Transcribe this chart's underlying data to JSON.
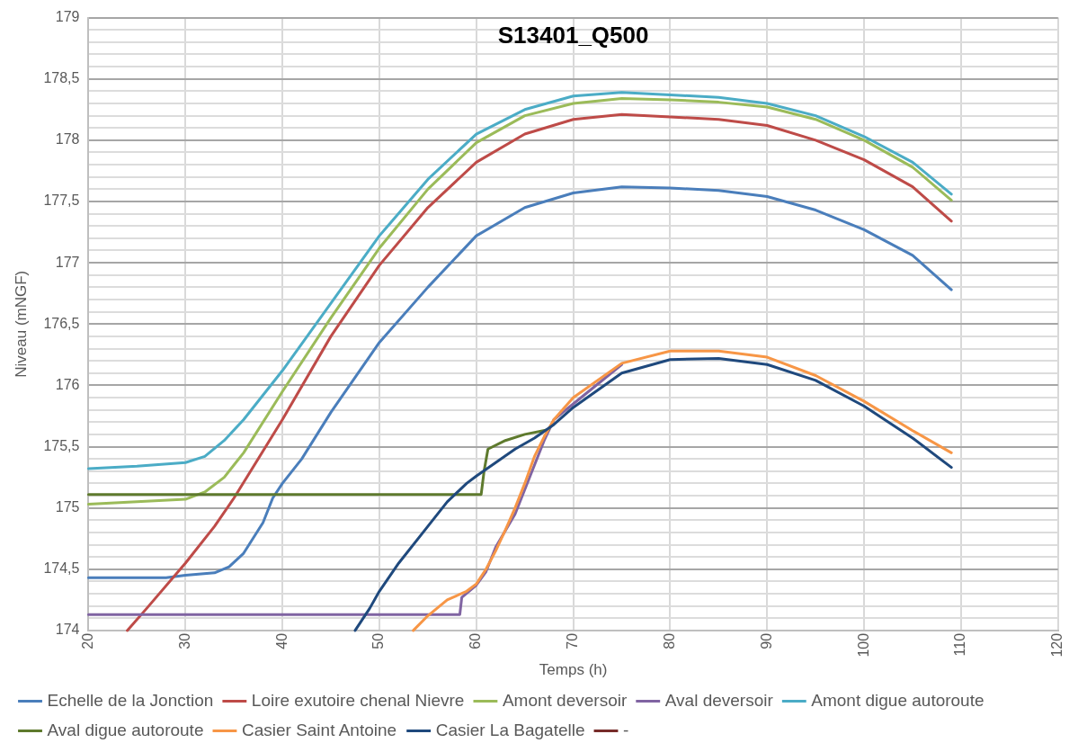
{
  "chart_data": {
    "type": "line",
    "title": "S13401_Q500",
    "xlabel": "Temps (h)",
    "ylabel": "Niveau (mNGF)",
    "xlim": [
      20,
      120
    ],
    "xticks": [
      20,
      30,
      40,
      50,
      60,
      70,
      80,
      90,
      100,
      110,
      120
    ],
    "ylim": [
      174,
      179
    ],
    "yticks": [
      174,
      {
        "value": 174.1,
        "label": null
      },
      {
        "value": 174.2,
        "label": null
      },
      {
        "value": 174.3,
        "label": null
      },
      {
        "value": 174.4,
        "label": null
      },
      {
        "value": 174.5,
        "label": "174,5"
      },
      {
        "value": 174.6,
        "label": null
      },
      {
        "value": 174.7,
        "label": null
      },
      {
        "value": 174.8,
        "label": null
      },
      {
        "value": 174.9,
        "label": null
      },
      175,
      {
        "value": 175.1,
        "label": null
      },
      {
        "value": 175.2,
        "label": null
      },
      {
        "value": 175.3,
        "label": null
      },
      {
        "value": 175.4,
        "label": null
      },
      {
        "value": 175.5,
        "label": "175,5"
      },
      {
        "value": 175.6,
        "label": null
      },
      {
        "value": 175.7,
        "label": null
      },
      {
        "value": 175.8,
        "label": null
      },
      {
        "value": 175.9,
        "label": null
      },
      176,
      {
        "value": 176.1,
        "label": null
      },
      {
        "value": 176.2,
        "label": null
      },
      {
        "value": 176.3,
        "label": null
      },
      {
        "value": 176.4,
        "label": null
      },
      {
        "value": 176.5,
        "label": "176,5"
      },
      {
        "value": 176.6,
        "label": null
      },
      {
        "value": 176.7,
        "label": null
      },
      {
        "value": 176.8,
        "label": null
      },
      {
        "value": 176.9,
        "label": null
      },
      177,
      {
        "value": 177.1,
        "label": null
      },
      {
        "value": 177.2,
        "label": null
      },
      {
        "value": 177.3,
        "label": null
      },
      {
        "value": 177.4,
        "label": null
      },
      {
        "value": 177.5,
        "label": "177,5"
      },
      {
        "value": 177.6,
        "label": null
      },
      {
        "value": 177.7,
        "label": null
      },
      {
        "value": 177.8,
        "label": null
      },
      {
        "value": 177.9,
        "label": null
      },
      178,
      {
        "value": 178.1,
        "label": null
      },
      {
        "value": 178.2,
        "label": null
      },
      {
        "value": 178.3,
        "label": null
      },
      {
        "value": 178.4,
        "label": null
      },
      {
        "value": 178.5,
        "label": "178,5"
      },
      {
        "value": 178.6,
        "label": null
      },
      {
        "value": 178.7,
        "label": null
      },
      {
        "value": 178.8,
        "label": null
      },
      {
        "value": 178.9,
        "label": null
      },
      179
    ],
    "grid": true,
    "legend": "bottom",
    "marker": "none",
    "line_style": "solid",
    "series": [
      {
        "name": "Echelle de la Jonction",
        "color": "#4a7ebb",
        "x": [
          20,
          28,
          30,
          33,
          34.5,
          36,
          38,
          39,
          40,
          42,
          45,
          50,
          55,
          60,
          65,
          70,
          75,
          80,
          85,
          90,
          95,
          100,
          105,
          109
        ],
        "values": [
          174.43,
          174.43,
          174.45,
          174.47,
          174.52,
          174.63,
          174.88,
          175.08,
          175.2,
          175.4,
          175.78,
          176.35,
          176.8,
          177.22,
          177.45,
          177.57,
          177.62,
          177.61,
          177.59,
          177.54,
          177.43,
          177.27,
          177.06,
          176.78
        ]
      },
      {
        "name": "Loire exutoire chenal Nievre",
        "color": "#be4b48",
        "x": [
          24,
          26,
          30,
          33,
          35,
          40,
          45,
          50,
          55,
          60,
          65,
          70,
          75,
          80,
          85,
          90,
          95,
          100,
          105,
          109
        ],
        "values": [
          174.0,
          174.18,
          174.55,
          174.85,
          175.08,
          175.72,
          176.4,
          176.98,
          177.45,
          177.82,
          178.05,
          178.17,
          178.21,
          178.19,
          178.17,
          178.12,
          178.0,
          177.84,
          177.62,
          177.34
        ]
      },
      {
        "name": "Amont deversoir",
        "color": "#9bbb59",
        "x": [
          20,
          25,
          30,
          32,
          34,
          36,
          40,
          45,
          50,
          55,
          60,
          65,
          70,
          75,
          80,
          85,
          90,
          95,
          100,
          105,
          109
        ],
        "values": [
          175.03,
          175.05,
          175.07,
          175.13,
          175.25,
          175.45,
          175.95,
          176.55,
          177.12,
          177.6,
          177.98,
          178.2,
          178.3,
          178.34,
          178.33,
          178.31,
          178.27,
          178.17,
          178.0,
          177.78,
          177.51
        ]
      },
      {
        "name": "Aval deversoir",
        "color": "#8064a2",
        "x": [
          20,
          58.3,
          58.5,
          60,
          61,
          62,
          64,
          66,
          67,
          68,
          75
        ],
        "values": [
          174.13,
          174.13,
          174.27,
          174.37,
          174.48,
          174.68,
          174.95,
          175.35,
          175.55,
          175.72,
          176.17
        ]
      },
      {
        "name": "Amont digue autoroute",
        "color": "#4bacc6",
        "x": [
          20,
          25,
          30,
          32,
          34,
          36,
          40,
          45,
          50,
          55,
          60,
          65,
          70,
          75,
          80,
          85,
          90,
          95,
          100,
          105,
          109
        ],
        "values": [
          175.32,
          175.34,
          175.37,
          175.42,
          175.55,
          175.72,
          176.12,
          176.67,
          177.22,
          177.68,
          178.05,
          178.25,
          178.36,
          178.39,
          178.37,
          178.35,
          178.3,
          178.2,
          178.03,
          177.82,
          177.56
        ]
      },
      {
        "name": "Aval digue autoroute",
        "color": "#5e7a2d",
        "x": [
          20,
          60.5,
          60.8,
          61.2,
          63,
          65,
          67.5
        ],
        "values": [
          175.11,
          175.11,
          175.3,
          175.48,
          175.55,
          175.6,
          175.64
        ]
      },
      {
        "name": "Casier Saint Antoine",
        "color": "#f79646",
        "x": [
          53.5,
          55,
          57,
          59,
          60,
          61,
          62,
          63,
          64,
          65,
          66,
          67,
          68,
          70,
          75,
          80,
          85,
          90,
          95,
          100,
          105,
          109
        ],
        "values": [
          174.0,
          174.12,
          174.25,
          174.32,
          174.38,
          174.5,
          174.65,
          174.82,
          175.0,
          175.2,
          175.42,
          175.58,
          175.72,
          175.9,
          176.18,
          176.28,
          176.28,
          176.23,
          176.08,
          175.87,
          175.63,
          175.45
        ]
      },
      {
        "name": "Casier La Bagatelle",
        "color": "#1f497d",
        "x": [
          47.5,
          49,
          50,
          52,
          55,
          57,
          59,
          60,
          62,
          64,
          66,
          68,
          70,
          75,
          80,
          85,
          90,
          95,
          100,
          105,
          109
        ],
        "values": [
          174.0,
          174.18,
          174.32,
          174.55,
          174.85,
          175.05,
          175.2,
          175.26,
          175.37,
          175.48,
          175.57,
          175.68,
          175.82,
          176.1,
          176.21,
          176.22,
          176.17,
          176.04,
          175.83,
          175.57,
          175.33
        ]
      },
      {
        "name": "-",
        "color": "#772c2a"
      }
    ]
  }
}
